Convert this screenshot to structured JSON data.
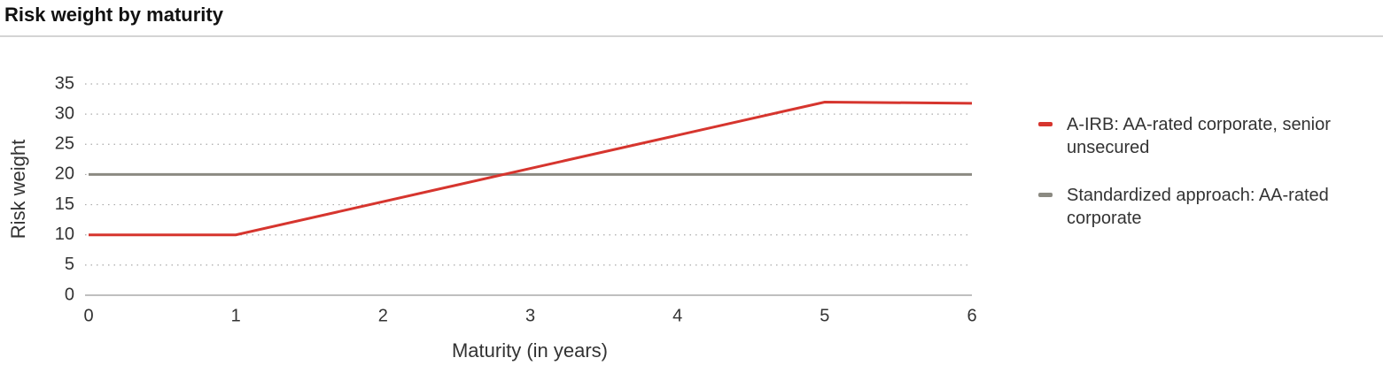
{
  "chart_data": {
    "type": "line",
    "title": "Risk weight by maturity",
    "x_label": "Maturity (in years)",
    "y_label": "Risk weight",
    "xlim": [
      0,
      6
    ],
    "xticks": [
      0,
      1,
      2,
      3,
      4,
      5,
      6
    ],
    "ylim": [
      0,
      35
    ],
    "yticks": [
      0,
      5,
      10,
      15,
      20,
      25,
      30,
      35
    ],
    "grid": true,
    "legend": "right",
    "series": [
      {
        "name": "A-IRB: AA-rated corporate, senior unsecured",
        "color": "#d6352e",
        "x": [
          0,
          1,
          5,
          6
        ],
        "values": [
          10,
          10,
          32,
          31.8
        ]
      },
      {
        "name": "Standardized approach: AA-rated corporate",
        "color": "#8b8a82",
        "x": [
          0,
          6
        ],
        "values": [
          20,
          20
        ]
      }
    ]
  }
}
